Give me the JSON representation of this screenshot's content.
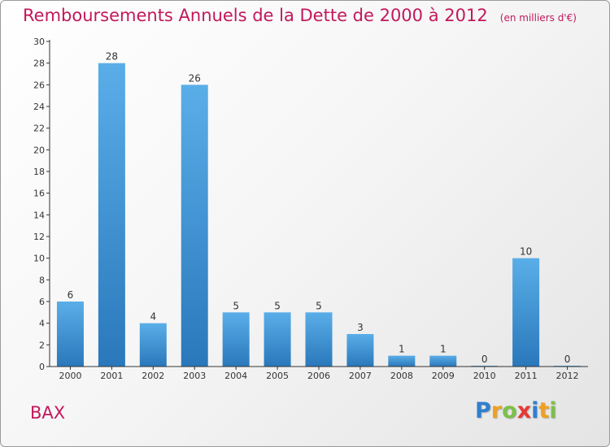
{
  "title": "Remboursements Annuels de la Dette de 2000 à 2012",
  "unit_label": "(en milliers d'€)",
  "commune": "BAX",
  "logo": {
    "letters": [
      "P",
      "r",
      "o",
      "x",
      "i",
      "t",
      "i"
    ],
    "colors": [
      "#2e7fd0",
      "#f0a020",
      "#7cc04a",
      "#e53935",
      "#2e7fd0",
      "#f0a020",
      "#7cc04a"
    ]
  },
  "colors": {
    "title": "#c2185b",
    "bar_top": "#5aaee8",
    "bar_bottom": "#2a78bb",
    "axis": "#333333",
    "grid": "#cccccc"
  },
  "chart_data": {
    "type": "bar",
    "categories": [
      "2000",
      "2001",
      "2002",
      "2003",
      "2004",
      "2005",
      "2006",
      "2007",
      "2008",
      "2009",
      "2010",
      "2011",
      "2012"
    ],
    "values": [
      6,
      28,
      4,
      26,
      5,
      5,
      5,
      3,
      1,
      1,
      0,
      10,
      0
    ],
    "yticks": [
      0,
      2,
      4,
      6,
      8,
      10,
      12,
      14,
      16,
      18,
      20,
      22,
      24,
      26,
      28,
      30
    ],
    "ylim": [
      0,
      30
    ],
    "grid": false,
    "data_labels": true
  }
}
